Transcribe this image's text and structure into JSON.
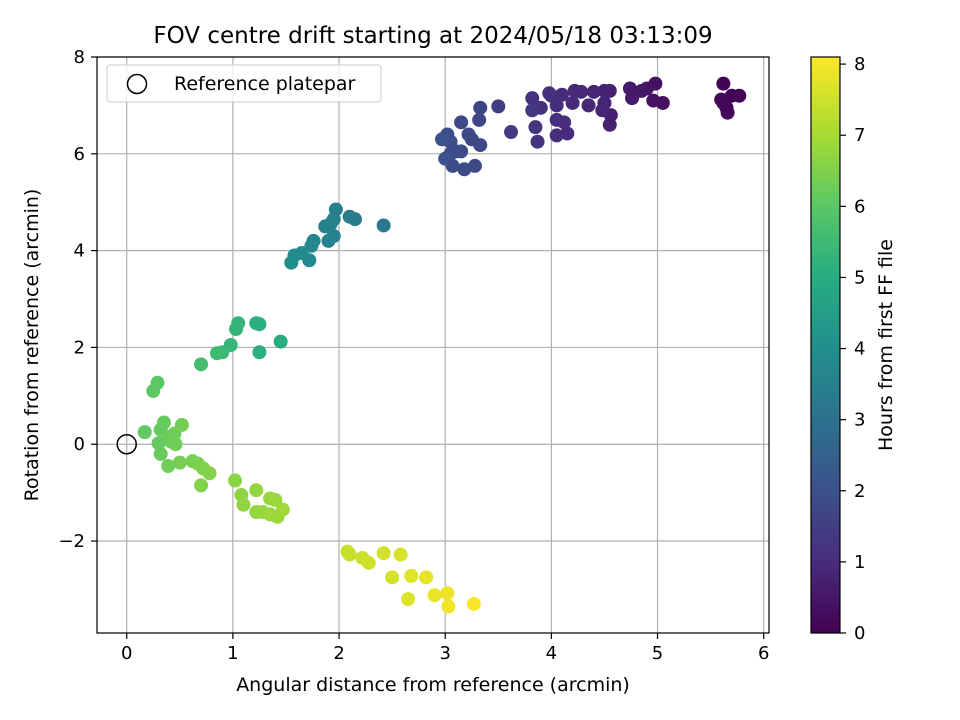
{
  "chart_data": {
    "type": "scatter",
    "title": "FOV centre drift starting at 2024/05/18 03:13:09",
    "xlabel": "Angular distance from reference (arcmin)",
    "ylabel": "Rotation from reference (arcmin)",
    "xlim": [
      -0.28,
      6.05
    ],
    "ylim": [
      -3.9,
      8.0
    ],
    "xticks": [
      0,
      1,
      2,
      3,
      4,
      5,
      6
    ],
    "yticks": [
      -2,
      0,
      2,
      4,
      6,
      8
    ],
    "ytick_labels": [
      "−2",
      "0",
      "2",
      "4",
      "6",
      "8"
    ],
    "grid": true,
    "legend": {
      "position": "top-left",
      "entries": [
        "Reference platepar"
      ]
    },
    "reference_point": {
      "x": 0,
      "y": 0
    },
    "colorbar": {
      "label": "Hours from first FF file",
      "range": [
        0,
        8.1
      ],
      "ticks": [
        0,
        1,
        2,
        3,
        4,
        5,
        6,
        7,
        8
      ],
      "colormap": "viridis"
    },
    "points": [
      {
        "x": 5.62,
        "y": 7.45,
        "h": 0.05
      },
      {
        "x": 5.6,
        "y": 7.12,
        "h": 0.08
      },
      {
        "x": 5.65,
        "y": 6.95,
        "h": 0.1
      },
      {
        "x": 5.66,
        "y": 6.85,
        "h": 0.12
      },
      {
        "x": 5.7,
        "y": 7.2,
        "h": 0.06
      },
      {
        "x": 5.77,
        "y": 7.2,
        "h": 0.04
      },
      {
        "x": 5.62,
        "y": 7.05,
        "h": 0.15
      },
      {
        "x": 5.05,
        "y": 7.05,
        "h": 0.35
      },
      {
        "x": 4.98,
        "y": 7.45,
        "h": 0.4
      },
      {
        "x": 4.96,
        "y": 7.1,
        "h": 0.42
      },
      {
        "x": 4.9,
        "y": 7.35,
        "h": 0.45
      },
      {
        "x": 4.85,
        "y": 7.3,
        "h": 0.5
      },
      {
        "x": 4.78,
        "y": 7.25,
        "h": 0.52
      },
      {
        "x": 4.76,
        "y": 7.15,
        "h": 0.55
      },
      {
        "x": 4.74,
        "y": 7.35,
        "h": 0.58
      },
      {
        "x": 4.55,
        "y": 6.6,
        "h": 0.75
      },
      {
        "x": 4.56,
        "y": 6.8,
        "h": 0.72
      },
      {
        "x": 4.55,
        "y": 7.3,
        "h": 0.7
      },
      {
        "x": 4.5,
        "y": 7.05,
        "h": 0.78
      },
      {
        "x": 4.5,
        "y": 7.3,
        "h": 0.8
      },
      {
        "x": 4.48,
        "y": 6.9,
        "h": 0.82
      },
      {
        "x": 4.4,
        "y": 7.28,
        "h": 0.85
      },
      {
        "x": 4.35,
        "y": 7.0,
        "h": 0.88
      },
      {
        "x": 4.28,
        "y": 7.28,
        "h": 0.9
      },
      {
        "x": 4.22,
        "y": 7.3,
        "h": 0.92
      },
      {
        "x": 4.2,
        "y": 7.05,
        "h": 0.95
      },
      {
        "x": 4.15,
        "y": 6.42,
        "h": 1.0
      },
      {
        "x": 4.12,
        "y": 6.65,
        "h": 1.02
      },
      {
        "x": 4.1,
        "y": 7.22,
        "h": 1.0
      },
      {
        "x": 4.05,
        "y": 6.38,
        "h": 1.05
      },
      {
        "x": 4.05,
        "y": 6.7,
        "h": 1.08
      },
      {
        "x": 4.05,
        "y": 7.0,
        "h": 1.05
      },
      {
        "x": 4.0,
        "y": 7.2,
        "h": 1.1
      },
      {
        "x": 3.98,
        "y": 7.25,
        "h": 1.12
      },
      {
        "x": 3.9,
        "y": 6.95,
        "h": 1.15
      },
      {
        "x": 3.87,
        "y": 6.25,
        "h": 1.2
      },
      {
        "x": 3.85,
        "y": 6.55,
        "h": 1.22
      },
      {
        "x": 3.82,
        "y": 7.15,
        "h": 1.18
      },
      {
        "x": 3.82,
        "y": 6.9,
        "h": 1.25
      },
      {
        "x": 3.62,
        "y": 6.45,
        "h": 1.45
      },
      {
        "x": 3.5,
        "y": 6.98,
        "h": 1.5
      },
      {
        "x": 3.33,
        "y": 6.95,
        "h": 1.65
      },
      {
        "x": 3.32,
        "y": 6.7,
        "h": 1.7
      },
      {
        "x": 3.33,
        "y": 6.18,
        "h": 1.72
      },
      {
        "x": 3.25,
        "y": 6.3,
        "h": 1.75
      },
      {
        "x": 3.22,
        "y": 6.4,
        "h": 1.78
      },
      {
        "x": 3.28,
        "y": 5.75,
        "h": 1.8
      },
      {
        "x": 3.18,
        "y": 5.68,
        "h": 1.82
      },
      {
        "x": 3.15,
        "y": 6.05,
        "h": 1.85
      },
      {
        "x": 3.15,
        "y": 6.65,
        "h": 1.75
      },
      {
        "x": 3.1,
        "y": 6.05,
        "h": 1.88
      },
      {
        "x": 3.07,
        "y": 5.75,
        "h": 1.9
      },
      {
        "x": 3.05,
        "y": 6.0,
        "h": 1.92
      },
      {
        "x": 3.05,
        "y": 6.25,
        "h": 1.9
      },
      {
        "x": 3.02,
        "y": 6.4,
        "h": 1.95
      },
      {
        "x": 3.0,
        "y": 5.9,
        "h": 2.0
      },
      {
        "x": 2.97,
        "y": 6.3,
        "h": 2.02
      },
      {
        "x": 2.42,
        "y": 4.52,
        "h": 3.2
      },
      {
        "x": 2.15,
        "y": 4.65,
        "h": 3.3
      },
      {
        "x": 2.1,
        "y": 4.7,
        "h": 3.35
      },
      {
        "x": 1.97,
        "y": 4.85,
        "h": 3.45
      },
      {
        "x": 1.95,
        "y": 4.65,
        "h": 3.5
      },
      {
        "x": 1.95,
        "y": 4.3,
        "h": 3.52
      },
      {
        "x": 1.92,
        "y": 4.55,
        "h": 3.55
      },
      {
        "x": 1.9,
        "y": 4.2,
        "h": 3.58
      },
      {
        "x": 1.87,
        "y": 4.5,
        "h": 3.6
      },
      {
        "x": 1.76,
        "y": 4.2,
        "h": 3.7
      },
      {
        "x": 1.74,
        "y": 4.1,
        "h": 3.75
      },
      {
        "x": 1.72,
        "y": 3.8,
        "h": 3.78
      },
      {
        "x": 1.65,
        "y": 3.95,
        "h": 3.85
      },
      {
        "x": 1.58,
        "y": 3.9,
        "h": 3.9
      },
      {
        "x": 1.55,
        "y": 3.75,
        "h": 3.95
      },
      {
        "x": 1.45,
        "y": 2.12,
        "h": 5.0
      },
      {
        "x": 1.25,
        "y": 2.48,
        "h": 5.1
      },
      {
        "x": 1.22,
        "y": 2.5,
        "h": 5.12
      },
      {
        "x": 1.25,
        "y": 1.9,
        "h": 5.15
      },
      {
        "x": 1.05,
        "y": 2.5,
        "h": 5.3
      },
      {
        "x": 1.03,
        "y": 2.38,
        "h": 5.32
      },
      {
        "x": 0.98,
        "y": 2.05,
        "h": 5.38
      },
      {
        "x": 0.9,
        "y": 1.9,
        "h": 5.45
      },
      {
        "x": 0.85,
        "y": 1.88,
        "h": 5.5
      },
      {
        "x": 0.7,
        "y": 1.65,
        "h": 5.6
      },
      {
        "x": 0.29,
        "y": 1.27,
        "h": 6.0
      },
      {
        "x": 0.25,
        "y": 1.1,
        "h": 6.05
      },
      {
        "x": 0.17,
        "y": 0.25,
        "h": 6.1
      },
      {
        "x": 0.3,
        "y": 0.02,
        "h": 6.15
      },
      {
        "x": 0.32,
        "y": 0.3,
        "h": 6.15
      },
      {
        "x": 0.35,
        "y": 0.45,
        "h": 6.18
      },
      {
        "x": 0.32,
        "y": -0.2,
        "h": 6.2
      },
      {
        "x": 0.4,
        "y": 0.15,
        "h": 6.22
      },
      {
        "x": 0.42,
        "y": 0.05,
        "h": 6.25
      },
      {
        "x": 0.45,
        "y": 0.22,
        "h": 6.28
      },
      {
        "x": 0.46,
        "y": 0.0,
        "h": 6.3
      },
      {
        "x": 0.39,
        "y": -0.45,
        "h": 6.32
      },
      {
        "x": 0.52,
        "y": 0.4,
        "h": 6.35
      },
      {
        "x": 0.5,
        "y": -0.38,
        "h": 6.38
      },
      {
        "x": 0.62,
        "y": -0.35,
        "h": 6.4
      },
      {
        "x": 0.67,
        "y": -0.4,
        "h": 6.45
      },
      {
        "x": 0.72,
        "y": -0.5,
        "h": 6.5
      },
      {
        "x": 0.78,
        "y": -0.6,
        "h": 6.55
      },
      {
        "x": 0.7,
        "y": -0.85,
        "h": 6.55
      },
      {
        "x": 1.02,
        "y": -0.75,
        "h": 6.65
      },
      {
        "x": 1.08,
        "y": -1.05,
        "h": 6.7
      },
      {
        "x": 1.1,
        "y": -1.25,
        "h": 6.72
      },
      {
        "x": 1.22,
        "y": -0.95,
        "h": 6.75
      },
      {
        "x": 1.22,
        "y": -1.4,
        "h": 6.78
      },
      {
        "x": 1.28,
        "y": -1.4,
        "h": 6.8
      },
      {
        "x": 1.35,
        "y": -1.12,
        "h": 6.82
      },
      {
        "x": 1.35,
        "y": -1.45,
        "h": 6.85
      },
      {
        "x": 1.4,
        "y": -1.15,
        "h": 6.87
      },
      {
        "x": 1.42,
        "y": -1.5,
        "h": 6.88
      },
      {
        "x": 1.47,
        "y": -1.35,
        "h": 6.9
      },
      {
        "x": 2.08,
        "y": -2.22,
        "h": 7.4
      },
      {
        "x": 2.1,
        "y": -2.28,
        "h": 7.42
      },
      {
        "x": 2.22,
        "y": -2.35,
        "h": 7.45
      },
      {
        "x": 2.28,
        "y": -2.45,
        "h": 7.5
      },
      {
        "x": 2.42,
        "y": -2.25,
        "h": 7.55
      },
      {
        "x": 2.5,
        "y": -2.75,
        "h": 7.6
      },
      {
        "x": 2.58,
        "y": -2.28,
        "h": 7.62
      },
      {
        "x": 2.65,
        "y": -3.2,
        "h": 7.7
      },
      {
        "x": 2.68,
        "y": -2.72,
        "h": 7.72
      },
      {
        "x": 2.82,
        "y": -2.75,
        "h": 7.8
      },
      {
        "x": 2.9,
        "y": -3.12,
        "h": 7.85
      },
      {
        "x": 3.02,
        "y": -3.08,
        "h": 7.9
      },
      {
        "x": 3.03,
        "y": -3.35,
        "h": 7.95
      },
      {
        "x": 3.27,
        "y": -3.3,
        "h": 8.05
      }
    ]
  }
}
